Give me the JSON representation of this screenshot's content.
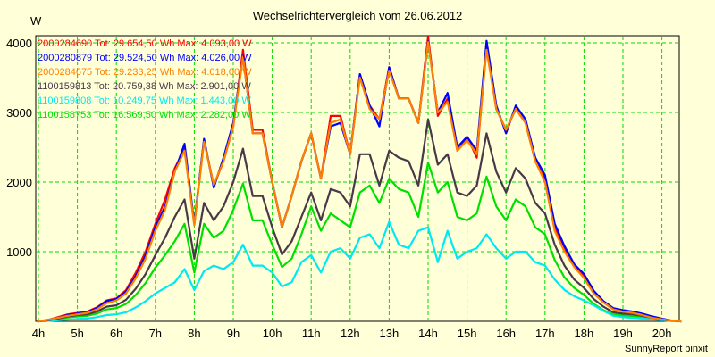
{
  "chart_data": {
    "type": "line",
    "title": "Wechselrichtervergleich vom 26.06.2012",
    "ylabel": "W",
    "xlabel": "",
    "ylim": [
      0,
      4100
    ],
    "xlim_hours": [
      4,
      20.5
    ],
    "y_ticks": [
      1000,
      2000,
      3000,
      4000
    ],
    "y_tick_labels": [
      "1000",
      "2000",
      "3000",
      "4000"
    ],
    "x_ticks": [
      4,
      5,
      6,
      7,
      8,
      9,
      10,
      11,
      12,
      13,
      14,
      15,
      16,
      17,
      18,
      19,
      20
    ],
    "x_tick_labels": [
      "4h",
      "5h",
      "6h",
      "7h",
      "8h",
      "9h",
      "10h",
      "11h",
      "12h",
      "13h",
      "14h",
      "15h",
      "16h",
      "17h",
      "18h",
      "19h",
      "20h"
    ],
    "grid": true,
    "legend_position": "top-left",
    "x_start_hour": 4,
    "x_step_hours": 0.25,
    "series": [
      {
        "name": "2000284690",
        "legend": "2000284690 Tot: 29.654,50 Wh Max: 4.093,00 W",
        "color": "#ff0000",
        "values": [
          0,
          20,
          60,
          100,
          120,
          140,
          200,
          300,
          330,
          450,
          700,
          1000,
          1400,
          1750,
          2200,
          2480,
          1400,
          2600,
          1950,
          2300,
          2800,
          3900,
          2750,
          2750,
          2000,
          1350,
          1800,
          2300,
          2700,
          2050,
          2950,
          2950,
          2400,
          3550,
          3100,
          2900,
          3650,
          3200,
          3200,
          2850,
          4090,
          2950,
          3200,
          2450,
          2650,
          2350,
          3950,
          3050,
          2750,
          3050,
          2850,
          2300,
          2050,
          1350,
          1050,
          800,
          650,
          420,
          280,
          180,
          150,
          130,
          100,
          60,
          30,
          10,
          0
        ]
      },
      {
        "name": "2000280879",
        "legend": "2000280879 Tot: 29.524,50 Wh Max: 4.026,00 W",
        "color": "#0000ff",
        "values": [
          0,
          20,
          50,
          90,
          110,
          130,
          190,
          290,
          320,
          430,
          650,
          950,
          1350,
          1650,
          2150,
          2550,
          1400,
          2620,
          1920,
          2350,
          2850,
          3800,
          2700,
          2700,
          2000,
          1350,
          1800,
          2300,
          2700,
          2050,
          2800,
          2850,
          2400,
          3550,
          3100,
          2800,
          3650,
          3200,
          3200,
          2850,
          4020,
          3000,
          3280,
          2500,
          2650,
          2450,
          4030,
          3100,
          2700,
          3100,
          2900,
          2350,
          2100,
          1400,
          1080,
          820,
          680,
          440,
          290,
          190,
          160,
          140,
          110,
          70,
          40,
          10,
          0
        ]
      },
      {
        "name": "2000284675",
        "legend": "2000284675 Tot: 29.233,25 Wh Max: 4.018,00 W",
        "color": "#ff8000",
        "values": [
          0,
          20,
          50,
          80,
          100,
          120,
          170,
          260,
          300,
          400,
          620,
          900,
          1300,
          1600,
          2150,
          2450,
          1380,
          2580,
          1960,
          2300,
          2800,
          3800,
          2700,
          2700,
          2000,
          1350,
          1800,
          2300,
          2700,
          2050,
          2850,
          2900,
          2400,
          3500,
          3050,
          2900,
          3600,
          3200,
          3200,
          2850,
          4010,
          3000,
          3150,
          2450,
          2600,
          2400,
          3900,
          3050,
          2750,
          3050,
          2850,
          2300,
          2000,
          1300,
          1000,
          780,
          620,
          400,
          270,
          170,
          140,
          120,
          90,
          50,
          30,
          10,
          0
        ]
      },
      {
        "name": "1100159813",
        "legend": "1100159813 Tot: 20.759,38 Wh Max: 2.901,00 W",
        "color": "#483848",
        "values": [
          0,
          15,
          40,
          70,
          90,
          100,
          140,
          210,
          230,
          310,
          470,
          680,
          950,
          1200,
          1500,
          1750,
          900,
          1700,
          1450,
          1650,
          2000,
          2480,
          1800,
          1800,
          1350,
          960,
          1150,
          1500,
          1850,
          1450,
          1900,
          1850,
          1650,
          2400,
          2400,
          1950,
          2450,
          2350,
          2300,
          1950,
          2900,
          2250,
          2400,
          1850,
          1800,
          1950,
          2700,
          2150,
          1850,
          2200,
          2050,
          1700,
          1550,
          1100,
          800,
          600,
          480,
          320,
          210,
          130,
          110,
          100,
          80,
          50,
          25,
          10,
          0
        ]
      },
      {
        "name": "1100159808",
        "legend": "1100159808 Tot: 10.249,75 Wh Max: 1.443,00 W",
        "color": "#00e8f0",
        "values": [
          0,
          6,
          15,
          25,
          35,
          40,
          60,
          90,
          100,
          130,
          200,
          290,
          400,
          480,
          560,
          750,
          450,
          720,
          800,
          750,
          850,
          1100,
          800,
          800,
          700,
          500,
          560,
          850,
          950,
          700,
          1000,
          1050,
          900,
          1200,
          1250,
          1050,
          1430,
          1100,
          1050,
          1300,
          1350,
          850,
          1300,
          900,
          1000,
          1050,
          1250,
          1050,
          900,
          1000,
          1000,
          850,
          800,
          600,
          450,
          360,
          300,
          230,
          150,
          80,
          60,
          50,
          40,
          30,
          15,
          5,
          0
        ]
      },
      {
        "name": "1100158753",
        "legend": "1100158753 Tot: 16.569,50 Wh Max: 2.282,00 W",
        "color": "#00e000",
        "values": [
          0,
          12,
          30,
          55,
          70,
          80,
          110,
          170,
          190,
          250,
          380,
          550,
          770,
          950,
          1150,
          1400,
          700,
          1400,
          1200,
          1300,
          1600,
          1980,
          1450,
          1450,
          1100,
          780,
          900,
          1250,
          1650,
          1300,
          1550,
          1450,
          1350,
          1850,
          1950,
          1700,
          2050,
          1900,
          1850,
          1500,
          2280,
          1850,
          2000,
          1500,
          1450,
          1550,
          2080,
          1650,
          1450,
          1750,
          1650,
          1350,
          1250,
          880,
          630,
          480,
          380,
          250,
          160,
          100,
          85,
          75,
          60,
          40,
          20,
          8,
          0
        ]
      }
    ]
  },
  "footer": "SunnyReport pinxit"
}
